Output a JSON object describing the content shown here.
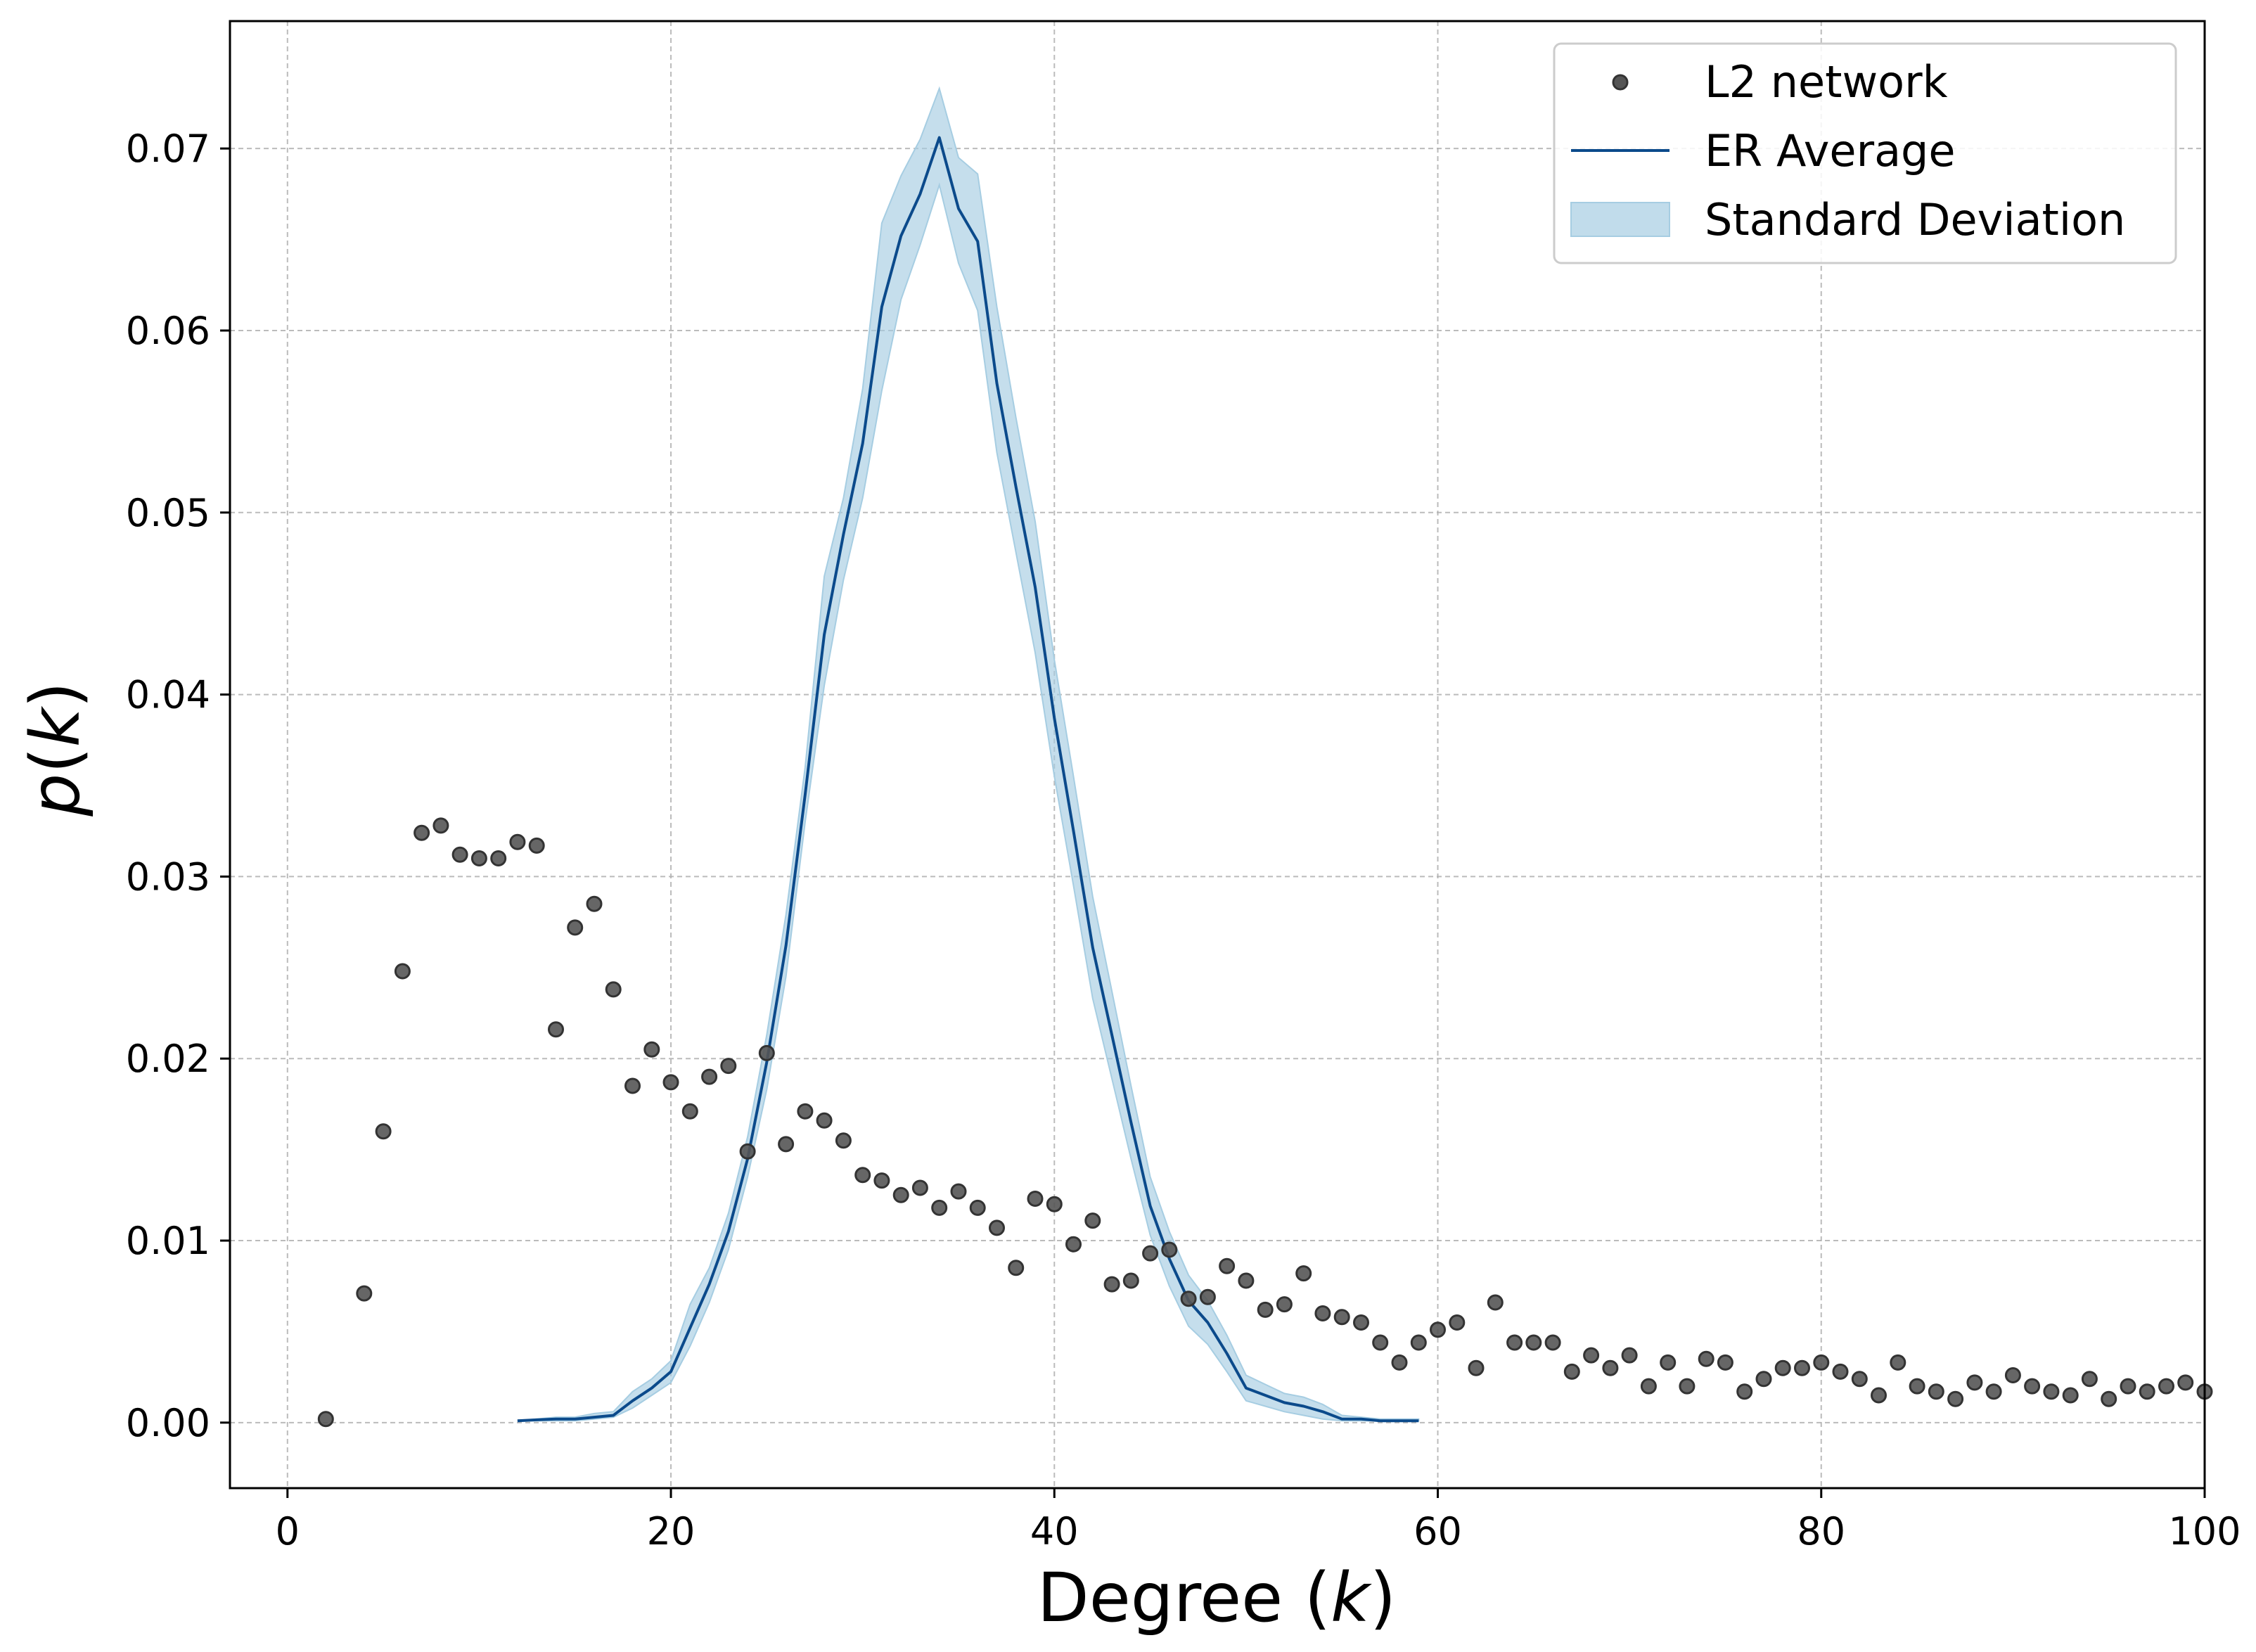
{
  "chart_data": {
    "type": "line",
    "xlabel": "Degree (k)",
    "ylabel": "p(k)",
    "xlim": [
      -3,
      100
    ],
    "ylim": [
      -0.0036,
      0.077
    ],
    "grid": true,
    "legend_placement": "top-right",
    "x_ticks": [
      0,
      20,
      40,
      60,
      80,
      100
    ],
    "x_tick_labels": [
      "0",
      "20",
      "40",
      "60",
      "80",
      "100"
    ],
    "y_ticks": [
      0.0,
      0.01,
      0.02,
      0.03,
      0.04,
      0.05,
      0.06,
      0.07
    ],
    "y_tick_labels": [
      "0.00",
      "0.01",
      "0.02",
      "0.03",
      "0.04",
      "0.05",
      "0.06",
      "0.07"
    ],
    "series": [
      {
        "name": "L2 network",
        "kind": "scatter",
        "color": "#555555",
        "x": [
          2,
          4,
          5,
          6,
          7,
          8,
          9,
          10,
          11,
          12,
          13,
          14,
          15,
          16,
          17,
          18,
          19,
          20,
          21,
          22,
          23,
          24,
          25,
          26,
          27,
          28,
          29,
          30,
          31,
          32,
          33,
          34,
          35,
          36,
          37,
          38,
          39,
          40,
          41,
          42,
          43,
          44,
          45,
          46,
          47,
          48,
          49,
          50,
          51,
          52,
          53,
          54,
          55,
          56,
          57,
          58,
          59,
          60,
          61,
          62,
          63,
          64,
          65,
          66,
          67,
          68,
          69,
          70,
          71,
          72,
          73,
          74,
          75,
          76,
          77,
          78,
          79,
          80,
          81,
          82,
          83,
          84,
          85,
          86,
          87,
          88,
          89,
          90,
          91,
          92,
          93,
          94,
          95,
          96,
          97,
          98,
          99,
          100
        ],
        "y": [
          0.0002,
          0.0071,
          0.016,
          0.0248,
          0.0324,
          0.0328,
          0.0312,
          0.031,
          0.031,
          0.0319,
          0.0317,
          0.0216,
          0.0272,
          0.0285,
          0.0238,
          0.0185,
          0.0205,
          0.0187,
          0.0171,
          0.019,
          0.0196,
          0.0149,
          0.0203,
          0.0153,
          0.0171,
          0.0166,
          0.0155,
          0.0136,
          0.0133,
          0.0125,
          0.0129,
          0.0118,
          0.0127,
          0.0118,
          0.0107,
          0.0085,
          0.0123,
          0.012,
          0.0098,
          0.0111,
          0.0076,
          0.0078,
          0.0093,
          0.0095,
          0.0068,
          0.0069,
          0.0086,
          0.0078,
          0.0062,
          0.0065,
          0.0082,
          0.006,
          0.0058,
          0.0055,
          0.0044,
          0.0033,
          0.0044,
          0.0051,
          0.0055,
          0.003,
          0.0066,
          0.0044,
          0.0044,
          0.0044,
          0.0028,
          0.0037,
          0.003,
          0.0037,
          0.002,
          0.0033,
          0.002,
          0.0035,
          0.0033,
          0.0017,
          0.0024,
          0.003,
          0.003,
          0.0033,
          0.0028,
          0.0024,
          0.0015,
          0.0033,
          0.002,
          0.0017,
          0.0013,
          0.0022,
          0.0017,
          0.0026,
          0.002,
          0.0017,
          0.0015,
          0.0024,
          0.0013,
          0.002,
          0.0017,
          0.002,
          0.0022,
          0.0017
        ]
      },
      {
        "name": "ER Average",
        "kind": "line",
        "color": "#0b4a8b",
        "x": [
          12,
          13,
          14,
          15,
          16,
          17,
          18,
          19,
          20,
          21,
          22,
          23,
          24,
          25,
          26,
          27,
          28,
          29,
          30,
          31,
          32,
          33,
          34,
          35,
          36,
          37,
          38,
          39,
          40,
          41,
          42,
          43,
          44,
          45,
          46,
          47,
          48,
          49,
          50,
          51,
          52,
          53,
          54,
          55,
          56,
          57,
          58,
          59
        ],
        "y": [
          0.0001,
          0.00015,
          0.0002,
          0.0002,
          0.0003,
          0.0004,
          0.0012,
          0.0019,
          0.0028,
          0.0052,
          0.0076,
          0.0105,
          0.0145,
          0.0198,
          0.0262,
          0.0345,
          0.0433,
          0.0488,
          0.0538,
          0.0613,
          0.0652,
          0.0675,
          0.0706,
          0.0667,
          0.0649,
          0.0571,
          0.0514,
          0.0459,
          0.0387,
          0.0325,
          0.0261,
          0.0213,
          0.0165,
          0.0119,
          0.009,
          0.0067,
          0.0055,
          0.0038,
          0.0019,
          0.0015,
          0.0011,
          0.0009,
          0.0006,
          0.0002,
          0.0002,
          0.0001,
          0.0001,
          0.0001
        ]
      },
      {
        "name": "Standard Deviation",
        "kind": "band",
        "color": "#a6cde2",
        "x": [
          12,
          13,
          14,
          15,
          16,
          17,
          18,
          19,
          20,
          21,
          22,
          23,
          24,
          25,
          26,
          27,
          28,
          29,
          30,
          31,
          32,
          33,
          34,
          35,
          36,
          37,
          38,
          39,
          40,
          41,
          42,
          43,
          44,
          45,
          46,
          47,
          48,
          49,
          50,
          51,
          52,
          53,
          54,
          55,
          56,
          57,
          58,
          59
        ],
        "lower": [
          0.0001,
          0.0001,
          0.0001,
          0.0001,
          0.0002,
          0.0003,
          0.0008,
          0.0015,
          0.0022,
          0.0042,
          0.0066,
          0.0095,
          0.0135,
          0.0183,
          0.0245,
          0.033,
          0.0405,
          0.0463,
          0.0508,
          0.0567,
          0.0617,
          0.0647,
          0.068,
          0.0637,
          0.0611,
          0.0533,
          0.0478,
          0.0423,
          0.0355,
          0.0295,
          0.0233,
          0.0189,
          0.0145,
          0.0103,
          0.0075,
          0.0053,
          0.0043,
          0.0028,
          0.0012,
          0.0009,
          0.0006,
          0.0004,
          0.0002,
          0.0001,
          0.0001,
          0.0001,
          0.0001,
          0.0001
        ],
        "upper": [
          0.0001,
          0.0002,
          0.0003,
          0.0003,
          0.0005,
          0.0006,
          0.0017,
          0.0024,
          0.0034,
          0.0065,
          0.0085,
          0.0115,
          0.0157,
          0.0213,
          0.0279,
          0.036,
          0.0465,
          0.0508,
          0.0568,
          0.0659,
          0.0685,
          0.0705,
          0.0733,
          0.0695,
          0.0686,
          0.0613,
          0.0552,
          0.0495,
          0.0419,
          0.0355,
          0.0289,
          0.0237,
          0.0185,
          0.0135,
          0.0105,
          0.0081,
          0.0067,
          0.0048,
          0.0026,
          0.0021,
          0.0016,
          0.0014,
          0.001,
          0.0004,
          0.0003,
          0.0002,
          0.0002,
          0.0002
        ]
      }
    ]
  }
}
